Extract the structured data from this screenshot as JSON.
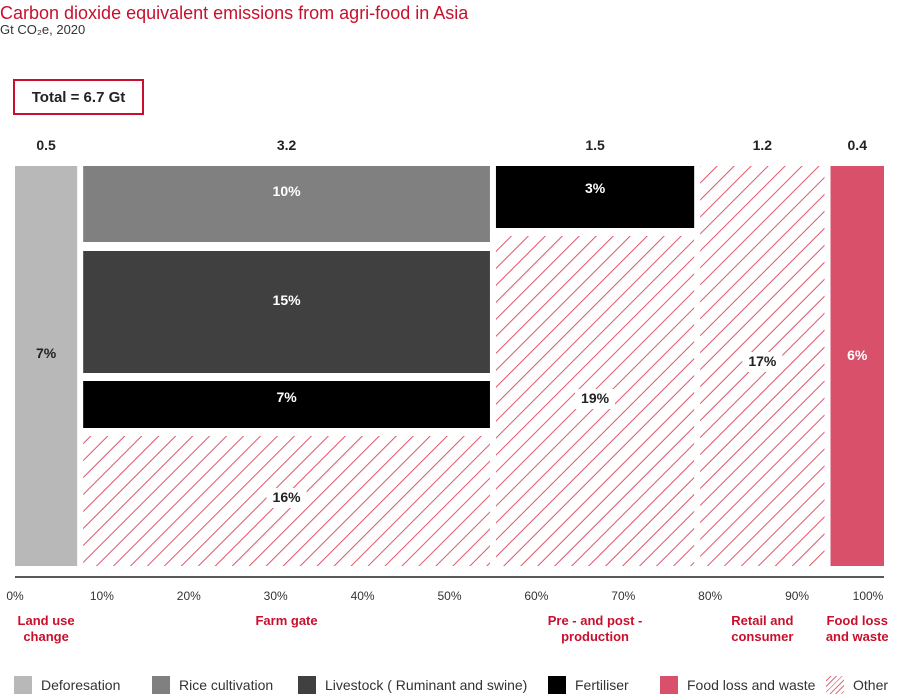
{
  "chart_data": {
    "type": "bar",
    "title": "Carbon dioxide equivalent emissions from agri-food in Asia",
    "subtitle": "Gt CO₂e, 2020",
    "total_label": "Total = 6.7 Gt",
    "x_ticks": [
      "0%",
      "10%",
      "20%",
      "30%",
      "40%",
      "50%",
      "60%",
      "70%",
      "80%",
      "90%",
      "100%"
    ],
    "xlim": [
      0,
      100
    ],
    "columns": [
      {
        "category": "Land use change",
        "value": 0.5,
        "value_label": "0.5",
        "start_pct": 0,
        "end_pct": 7.5,
        "segments": [
          {
            "type": "Deforesation",
            "share_label": "7%",
            "share": 7
          }
        ]
      },
      {
        "category": "Farm gate",
        "value": 3.2,
        "value_label": "3.2",
        "start_pct": 7.5,
        "end_pct": 55,
        "segments": [
          {
            "type": "Rice  cultivation",
            "share_label": "10%",
            "share": 10
          },
          {
            "type": "Livestock ( Ruminant and swine)",
            "share_label": "15%",
            "share": 15
          },
          {
            "type": "Fertiliser",
            "share_label": "7%",
            "share": 7
          },
          {
            "type": "Other",
            "share_label": "16%",
            "share": 16
          }
        ]
      },
      {
        "category": "Pre - and post - production",
        "value": 1.5,
        "value_label": "1.5",
        "start_pct": 55,
        "end_pct": 78.5,
        "segments": [
          {
            "type": "Fertiliser",
            "share_label": "3%",
            "share": 3
          },
          {
            "type": "Other",
            "share_label": "19%",
            "share": 19
          }
        ]
      },
      {
        "category": "Retail and consumer",
        "value": 1.2,
        "value_label": "1.2",
        "start_pct": 78.5,
        "end_pct": 93.5,
        "segments": [
          {
            "type": "Other",
            "share_label": "17%",
            "share": 17
          }
        ]
      },
      {
        "category": "Food loss and waste",
        "value": 0.4,
        "value_label": "0.4",
        "start_pct": 93.5,
        "end_pct": 100,
        "segments": [
          {
            "type": "Food loss and waste",
            "share_label": "6%",
            "share": 6
          }
        ]
      }
    ],
    "category_labels": [
      {
        "lines": [
          "Land use",
          "change"
        ]
      },
      {
        "lines": [
          "Farm gate"
        ]
      },
      {
        "lines": [
          "Pre - and post -",
          "production"
        ]
      },
      {
        "lines": [
          "Retail and",
          "consumer"
        ]
      },
      {
        "lines": [
          "Food loss",
          "and waste"
        ]
      }
    ],
    "legend": [
      {
        "label": "Deforesation",
        "color": "#b8b8b8",
        "pattern": "solid"
      },
      {
        "label": "Rice  cultivation",
        "color": "#808080",
        "pattern": "solid"
      },
      {
        "label": "Livestock ( Ruminant and swine)",
        "color": "#404040",
        "pattern": "solid"
      },
      {
        "label": "Fertiliser",
        "color": "#000000",
        "pattern": "solid"
      },
      {
        "label": "Food loss and waste",
        "color": "#d9506a",
        "pattern": "solid"
      },
      {
        "label": "Other",
        "color": "#e0566c",
        "pattern": "hatch"
      }
    ],
    "colors": {
      "accent": "#c8102e",
      "hatch": "#e0566c"
    }
  }
}
